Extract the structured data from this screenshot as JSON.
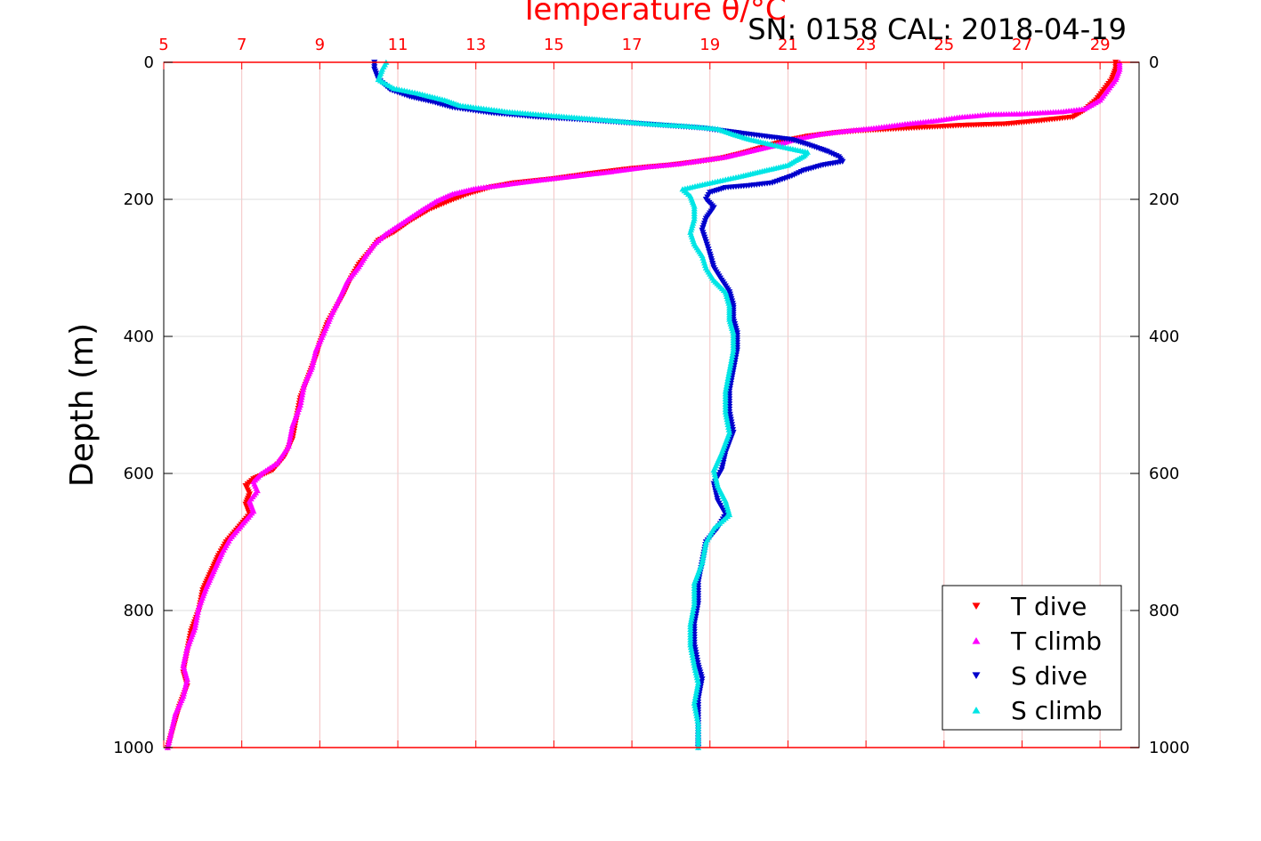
{
  "chart_data": {
    "type": "scatter",
    "title": "Temperature θ/°C",
    "subtitle": "SN: 0158  CAL: 2018-04-19",
    "xlabel": "Temperature θ/°C",
    "ylabel": "Depth (m)",
    "xlim": [
      5,
      30
    ],
    "ylim": [
      1000,
      0
    ],
    "xticks": [
      "5",
      "7",
      "9",
      "11",
      "13",
      "15",
      "17",
      "19",
      "21",
      "23",
      "25",
      "27",
      "29"
    ],
    "yticks": [
      "0",
      "200",
      "400",
      "600",
      "800",
      "1000"
    ],
    "grid": true,
    "legend_position": "bottom-right",
    "series": [
      {
        "name": "T dive",
        "marker": "triangle-down",
        "color": "#ff0000",
        "points": [
          [
            29.4,
            0
          ],
          [
            29.4,
            10
          ],
          [
            29.3,
            25
          ],
          [
            29.1,
            40
          ],
          [
            28.9,
            55
          ],
          [
            28.6,
            70
          ],
          [
            28.3,
            80
          ],
          [
            27.5,
            85
          ],
          [
            26.6,
            90
          ],
          [
            25.5,
            92
          ],
          [
            24.5,
            95
          ],
          [
            23.5,
            98
          ],
          [
            22.8,
            100
          ],
          [
            22.2,
            103
          ],
          [
            21.5,
            108
          ],
          [
            20.9,
            115
          ],
          [
            20.3,
            125
          ],
          [
            19.8,
            133
          ],
          [
            19.3,
            140
          ],
          [
            18.7,
            145
          ],
          [
            18.0,
            150
          ],
          [
            17.0,
            155
          ],
          [
            16.0,
            162
          ],
          [
            15.0,
            170
          ],
          [
            14.0,
            176
          ],
          [
            13.4,
            182
          ],
          [
            12.8,
            192
          ],
          [
            12.3,
            203
          ],
          [
            11.8,
            215
          ],
          [
            11.3,
            232
          ],
          [
            10.9,
            248
          ],
          [
            10.5,
            260
          ],
          [
            10.3,
            275
          ],
          [
            10.0,
            295
          ],
          [
            9.8,
            315
          ],
          [
            9.6,
            340
          ],
          [
            9.4,
            360
          ],
          [
            9.2,
            380
          ],
          [
            9.0,
            410
          ],
          [
            8.9,
            430
          ],
          [
            8.7,
            460
          ],
          [
            8.5,
            490
          ],
          [
            8.4,
            520
          ],
          [
            8.3,
            550
          ],
          [
            8.1,
            575
          ],
          [
            7.8,
            595
          ],
          [
            7.3,
            608
          ],
          [
            7.1,
            618
          ],
          [
            7.2,
            630
          ],
          [
            7.1,
            645
          ],
          [
            7.2,
            660
          ],
          [
            6.9,
            680
          ],
          [
            6.6,
            700
          ],
          [
            6.4,
            720
          ],
          [
            6.2,
            745
          ],
          [
            6.0,
            770
          ],
          [
            5.9,
            800
          ],
          [
            5.7,
            830
          ],
          [
            5.6,
            860
          ],
          [
            5.5,
            890
          ],
          [
            5.6,
            910
          ],
          [
            5.4,
            940
          ],
          [
            5.3,
            960
          ],
          [
            5.2,
            980
          ],
          [
            5.1,
            1000
          ]
        ]
      },
      {
        "name": "T climb",
        "marker": "triangle-up",
        "color": "#ff00ff",
        "points": [
          [
            29.5,
            0
          ],
          [
            29.5,
            10
          ],
          [
            29.4,
            25
          ],
          [
            29.2,
            40
          ],
          [
            29.0,
            55
          ],
          [
            28.6,
            68
          ],
          [
            28.0,
            72
          ],
          [
            27.0,
            75
          ],
          [
            26.2,
            76
          ],
          [
            25.4,
            80
          ],
          [
            24.8,
            85
          ],
          [
            24.0,
            90
          ],
          [
            23.2,
            96
          ],
          [
            22.5,
            100
          ],
          [
            21.8,
            105
          ],
          [
            21.2,
            112
          ],
          [
            20.6,
            122
          ],
          [
            20.0,
            130
          ],
          [
            19.4,
            138
          ],
          [
            18.8,
            143
          ],
          [
            18.2,
            148
          ],
          [
            17.3,
            153
          ],
          [
            16.4,
            160
          ],
          [
            15.5,
            166
          ],
          [
            14.6,
            172
          ],
          [
            13.8,
            178
          ],
          [
            13.0,
            184
          ],
          [
            12.4,
            192
          ],
          [
            12.0,
            202
          ],
          [
            11.6,
            216
          ],
          [
            11.1,
            235
          ],
          [
            10.7,
            250
          ],
          [
            10.4,
            265
          ],
          [
            10.2,
            280
          ],
          [
            10.0,
            298
          ],
          [
            9.7,
            320
          ],
          [
            9.5,
            345
          ],
          [
            9.3,
            368
          ],
          [
            9.1,
            395
          ],
          [
            8.9,
            420
          ],
          [
            8.8,
            445
          ],
          [
            8.6,
            470
          ],
          [
            8.5,
            500
          ],
          [
            8.3,
            530
          ],
          [
            8.2,
            560
          ],
          [
            7.9,
            585
          ],
          [
            7.5,
            600
          ],
          [
            7.3,
            612
          ],
          [
            7.4,
            625
          ],
          [
            7.2,
            640
          ],
          [
            7.3,
            655
          ],
          [
            7.0,
            675
          ],
          [
            6.7,
            695
          ],
          [
            6.5,
            715
          ],
          [
            6.3,
            740
          ],
          [
            6.1,
            765
          ],
          [
            5.9,
            795
          ],
          [
            5.8,
            825
          ],
          [
            5.6,
            855
          ],
          [
            5.5,
            880
          ],
          [
            5.6,
            900
          ],
          [
            5.5,
            925
          ],
          [
            5.3,
            950
          ],
          [
            5.2,
            975
          ],
          [
            5.1,
            1000
          ]
        ]
      },
      {
        "name": "S dive",
        "marker": "triangle-down",
        "color": "#0000cc",
        "points": [
          [
            10.4,
            0
          ],
          [
            10.4,
            10
          ],
          [
            10.5,
            25
          ],
          [
            10.8,
            40
          ],
          [
            11.3,
            50
          ],
          [
            11.9,
            58
          ],
          [
            12.4,
            66
          ],
          [
            13.4,
            74
          ],
          [
            14.6,
            80
          ],
          [
            15.8,
            84
          ],
          [
            16.8,
            88
          ],
          [
            17.8,
            92
          ],
          [
            18.8,
            96
          ],
          [
            19.6,
            102
          ],
          [
            20.4,
            108
          ],
          [
            21.1,
            113
          ],
          [
            21.5,
            120
          ],
          [
            21.8,
            126
          ],
          [
            22.0,
            130
          ],
          [
            22.3,
            138
          ],
          [
            22.4,
            145
          ],
          [
            21.9,
            150
          ],
          [
            21.4,
            158
          ],
          [
            21.1,
            166
          ],
          [
            20.6,
            176
          ],
          [
            20.0,
            180
          ],
          [
            19.4,
            183
          ],
          [
            19.0,
            190
          ],
          [
            18.9,
            200
          ],
          [
            19.1,
            212
          ],
          [
            18.9,
            228
          ],
          [
            18.8,
            245
          ],
          [
            18.9,
            262
          ],
          [
            19.0,
            280
          ],
          [
            19.1,
            300
          ],
          [
            19.3,
            318
          ],
          [
            19.5,
            335
          ],
          [
            19.6,
            355
          ],
          [
            19.6,
            375
          ],
          [
            19.7,
            395
          ],
          [
            19.7,
            420
          ],
          [
            19.6,
            450
          ],
          [
            19.5,
            480
          ],
          [
            19.5,
            510
          ],
          [
            19.6,
            540
          ],
          [
            19.4,
            570
          ],
          [
            19.3,
            595
          ],
          [
            19.1,
            615
          ],
          [
            19.2,
            640
          ],
          [
            19.4,
            660
          ],
          [
            19.2,
            680
          ],
          [
            18.9,
            700
          ],
          [
            18.8,
            730
          ],
          [
            18.7,
            760
          ],
          [
            18.7,
            790
          ],
          [
            18.6,
            820
          ],
          [
            18.6,
            850
          ],
          [
            18.7,
            880
          ],
          [
            18.8,
            900
          ],
          [
            18.7,
            930
          ],
          [
            18.7,
            960
          ],
          [
            18.7,
            1000
          ]
        ]
      },
      {
        "name": "S climb",
        "marker": "triangle-up",
        "color": "#00e5e5",
        "points": [
          [
            10.7,
            0
          ],
          [
            10.6,
            10
          ],
          [
            10.5,
            25
          ],
          [
            10.9,
            38
          ],
          [
            11.5,
            45
          ],
          [
            12.2,
            55
          ],
          [
            12.6,
            63
          ],
          [
            13.8,
            72
          ],
          [
            15.0,
            78
          ],
          [
            16.3,
            84
          ],
          [
            17.5,
            90
          ],
          [
            18.4,
            93
          ],
          [
            19.2,
            97
          ],
          [
            19.6,
            105
          ],
          [
            20.0,
            112
          ],
          [
            20.6,
            120
          ],
          [
            21.0,
            125
          ],
          [
            21.5,
            131
          ],
          [
            21.4,
            137
          ],
          [
            21.2,
            143
          ],
          [
            21.0,
            150
          ],
          [
            20.4,
            158
          ],
          [
            19.8,
            166
          ],
          [
            19.0,
            176
          ],
          [
            18.3,
            185
          ],
          [
            18.5,
            195
          ],
          [
            18.6,
            210
          ],
          [
            18.6,
            228
          ],
          [
            18.5,
            248
          ],
          [
            18.6,
            265
          ],
          [
            18.8,
            282
          ],
          [
            18.9,
            300
          ],
          [
            19.1,
            318
          ],
          [
            19.4,
            335
          ],
          [
            19.5,
            355
          ],
          [
            19.5,
            375
          ],
          [
            19.6,
            395
          ],
          [
            19.6,
            420
          ],
          [
            19.5,
            450
          ],
          [
            19.4,
            480
          ],
          [
            19.4,
            510
          ],
          [
            19.5,
            540
          ],
          [
            19.3,
            570
          ],
          [
            19.1,
            595
          ],
          [
            19.2,
            618
          ],
          [
            19.4,
            640
          ],
          [
            19.5,
            660
          ],
          [
            19.1,
            680
          ],
          [
            18.9,
            700
          ],
          [
            18.8,
            730
          ],
          [
            18.6,
            760
          ],
          [
            18.6,
            790
          ],
          [
            18.5,
            820
          ],
          [
            18.5,
            850
          ],
          [
            18.6,
            880
          ],
          [
            18.7,
            905
          ],
          [
            18.6,
            935
          ],
          [
            18.7,
            965
          ],
          [
            18.7,
            1000
          ]
        ]
      }
    ]
  }
}
